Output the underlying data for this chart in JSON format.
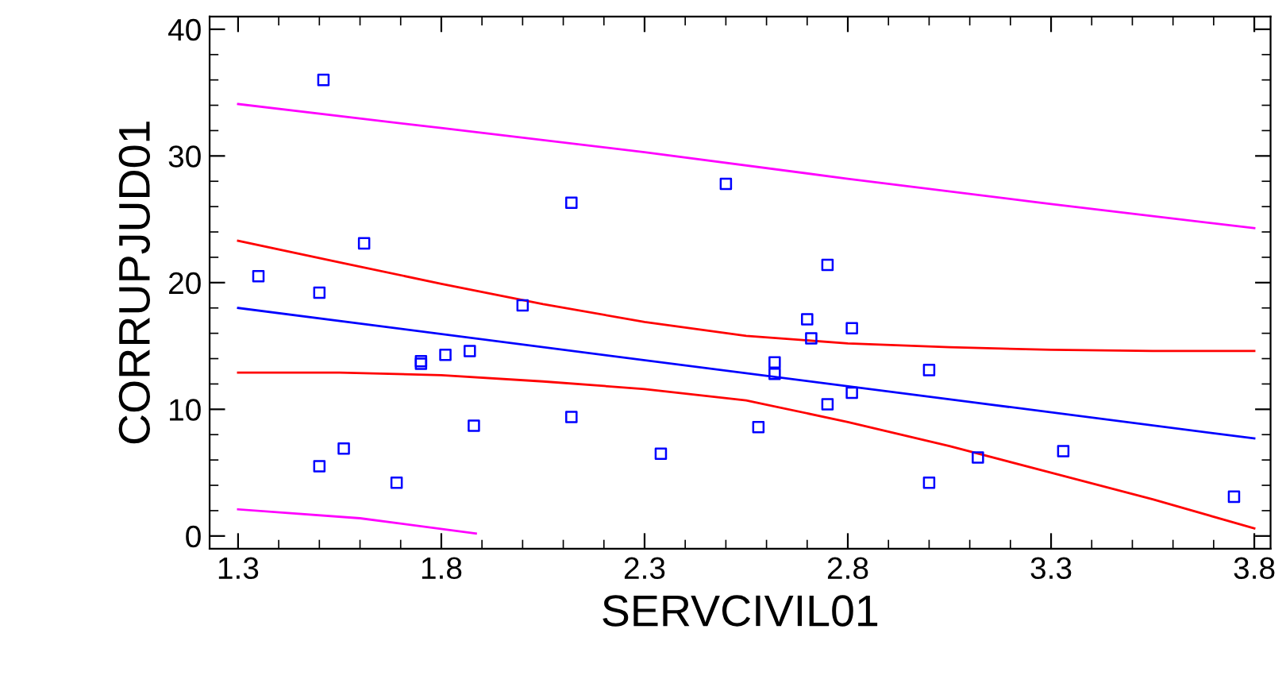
{
  "chart_data": {
    "type": "scatter",
    "xlabel": "SERVCIVIL01",
    "ylabel": "CORRUPJUD01",
    "xlim": [
      1.23,
      3.84
    ],
    "ylim": [
      -1,
      41
    ],
    "xticks": [
      1.3,
      1.8,
      2.3,
      2.8,
      3.3,
      3.8
    ],
    "yticks": [
      0,
      10,
      20,
      30,
      40
    ],
    "grid": false,
    "legend": false,
    "series": [
      {
        "color": "#0000ff",
        "marker": "square",
        "x": [
          1.35,
          1.51,
          1.5,
          1.61,
          1.5,
          1.56,
          1.69,
          1.75,
          1.75,
          1.81,
          1.87,
          1.88,
          2.0,
          2.12,
          2.12,
          2.34,
          2.5,
          2.58,
          2.62,
          2.62,
          2.7,
          2.71,
          2.75,
          2.75,
          2.81,
          2.81,
          3.0,
          3.0,
          3.12,
          3.33,
          3.75
        ],
        "values": [
          20.5,
          36.0,
          19.2,
          23.1,
          5.5,
          6.9,
          4.2,
          13.8,
          13.6,
          14.3,
          14.6,
          8.7,
          18.2,
          26.3,
          9.4,
          6.5,
          27.8,
          8.6,
          13.7,
          12.8,
          17.1,
          15.6,
          21.4,
          10.4,
          16.4,
          11.3,
          13.1,
          4.2,
          6.2,
          6.7,
          3.1
        ]
      },
      {
        "type": "line",
        "color": "#0000ff",
        "marker": "none",
        "line_style": "solid",
        "x": [
          1.3,
          3.8
        ],
        "values": [
          18.0,
          7.7
        ]
      },
      {
        "type": "line",
        "color": "#ff0000",
        "marker": "none",
        "line_style": "solid",
        "x": [
          1.3,
          1.55,
          1.8,
          2.05,
          2.3,
          2.55,
          2.8,
          3.05,
          3.3,
          3.55,
          3.8
        ],
        "values": [
          23.3,
          21.6,
          19.9,
          18.3,
          16.9,
          15.8,
          15.2,
          14.9,
          14.7,
          14.6,
          14.6
        ]
      },
      {
        "type": "line",
        "color": "#ff0000",
        "marker": "none",
        "line_style": "solid",
        "x": [
          1.3,
          1.55,
          1.8,
          2.05,
          2.3,
          2.55,
          2.8,
          3.05,
          3.3,
          3.55,
          3.8
        ],
        "values": [
          12.9,
          12.9,
          12.7,
          12.2,
          11.6,
          10.7,
          9.0,
          7.1,
          5.0,
          2.9,
          0.6
        ]
      },
      {
        "type": "line",
        "color": "#ff00ff",
        "marker": "none",
        "line_style": "solid",
        "x": [
          1.3,
          1.8,
          2.3,
          2.8,
          3.3,
          3.8
        ],
        "values": [
          34.1,
          32.2,
          30.3,
          28.2,
          26.2,
          24.3
        ]
      },
      {
        "type": "line",
        "color": "#ff00ff",
        "marker": "none",
        "line_style": "solid",
        "x": [
          1.3,
          1.6,
          1.885
        ],
        "values": [
          2.1,
          1.4,
          0.2
        ]
      }
    ]
  }
}
